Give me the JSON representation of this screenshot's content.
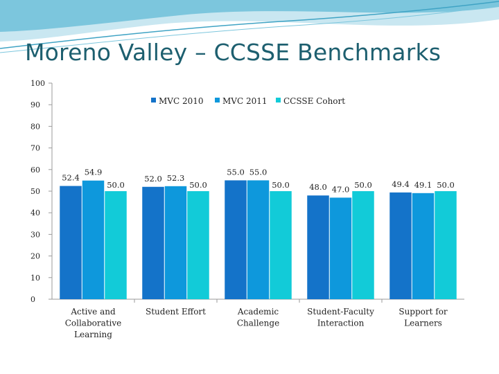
{
  "slide": {
    "title": "Moreno Valley – CCSSE Benchmarks"
  },
  "colors": {
    "title": "#1d5f6f",
    "wave_light": "#c9e7f1",
    "wave_mid": "#7cc6dd",
    "wave_dark": "#3fa3c4"
  },
  "chart_data": {
    "type": "bar",
    "categories": [
      [
        "Active and",
        "Collaborative",
        "Learning"
      ],
      [
        "Student Effort"
      ],
      [
        "Academic",
        "Challenge"
      ],
      [
        "Student-Faculty",
        "Interaction"
      ],
      [
        "Support for",
        "Learners"
      ]
    ],
    "series": [
      {
        "name": "MVC 2010",
        "color": "#1473c9",
        "values": [
          52.4,
          52.0,
          55.0,
          48.0,
          49.4
        ],
        "labels": [
          "52.4",
          "52.0",
          "55.0",
          "48.0",
          "49.4"
        ]
      },
      {
        "name": "MVC 2011",
        "color": "#0e98dc",
        "values": [
          54.9,
          52.3,
          55.0,
          47.0,
          49.1
        ],
        "labels": [
          "54.9",
          "52.3",
          "55.0",
          "47.0",
          "49.1"
        ]
      },
      {
        "name": "CCSSE Cohort",
        "color": "#12cbd8",
        "values": [
          50.0,
          50.0,
          50.0,
          50.0,
          50.0
        ],
        "labels": [
          "50.0",
          "50.0",
          "50.0",
          "50.0",
          "50.0"
        ]
      }
    ],
    "ylim": [
      0,
      100
    ],
    "yticks": [
      0,
      10,
      20,
      30,
      40,
      50,
      60,
      70,
      80,
      90,
      100
    ],
    "legend_position": "top",
    "grid": false
  }
}
